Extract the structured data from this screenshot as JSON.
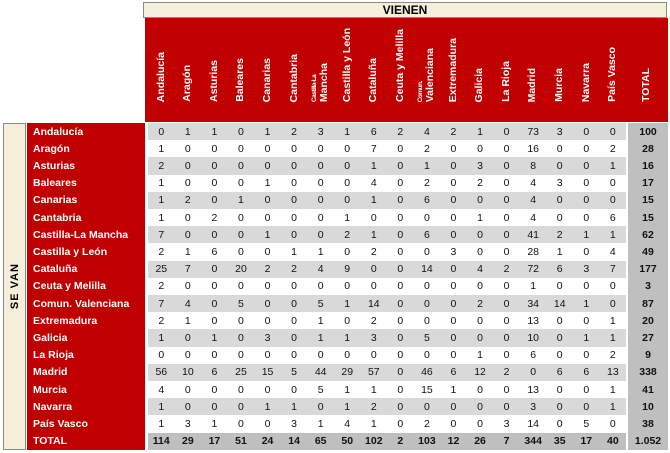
{
  "colors": {
    "header_red": "#C00000",
    "band_cream": "#F5EFDC",
    "band_border": "#8B8B7B",
    "stripe_gray": "#D9D9D9",
    "stripe_white": "#FFFFFF",
    "total_gray": "#BFBFBF",
    "header_text": "#FFFFFF",
    "data_text": "#111111"
  },
  "chart_data": {
    "type": "table",
    "title_top": "VIENEN",
    "title_left": "SE VAN",
    "total_column_label": "TOTAL",
    "columns": [
      {
        "label": "Andalucía"
      },
      {
        "label": "Aragón"
      },
      {
        "label": "Asturias"
      },
      {
        "label": "Baleares"
      },
      {
        "label": "Canarias"
      },
      {
        "label": "Cantabria"
      },
      {
        "label": "Castilla-La Mancha",
        "wrap": [
          "Castilla-La",
          "Mancha"
        ]
      },
      {
        "label": "Castilla y León"
      },
      {
        "label": "Cataluña"
      },
      {
        "label": "Ceuta y Melilla"
      },
      {
        "label": "Comun. Valenciana",
        "wrap": [
          "Comun.",
          "Valenciana"
        ]
      },
      {
        "label": "Extremadura"
      },
      {
        "label": "Galicia"
      },
      {
        "label": "La Rioja"
      },
      {
        "label": "Madrid"
      },
      {
        "label": "Murcia"
      },
      {
        "label": "Navarra"
      },
      {
        "label": "País Vasco"
      }
    ],
    "rows": [
      {
        "label": "Andalucía",
        "values": [
          0,
          1,
          1,
          0,
          1,
          2,
          3,
          1,
          6,
          2,
          4,
          2,
          1,
          0,
          73,
          3,
          0,
          0
        ],
        "total": "100"
      },
      {
        "label": "Aragón",
        "values": [
          1,
          0,
          0,
          0,
          0,
          0,
          0,
          0,
          7,
          0,
          2,
          0,
          0,
          0,
          16,
          0,
          0,
          2
        ],
        "total": "28"
      },
      {
        "label": "Asturias",
        "values": [
          2,
          0,
          0,
          0,
          0,
          0,
          0,
          0,
          1,
          0,
          1,
          0,
          3,
          0,
          8,
          0,
          0,
          1
        ],
        "total": "16"
      },
      {
        "label": "Baleares",
        "values": [
          1,
          0,
          0,
          0,
          1,
          0,
          0,
          0,
          4,
          0,
          2,
          0,
          2,
          0,
          4,
          3,
          0,
          0
        ],
        "total": "17"
      },
      {
        "label": "Canarias",
        "values": [
          1,
          2,
          0,
          1,
          0,
          0,
          0,
          0,
          1,
          0,
          6,
          0,
          0,
          0,
          4,
          0,
          0,
          0
        ],
        "total": "15"
      },
      {
        "label": "Cantabria",
        "values": [
          1,
          0,
          2,
          0,
          0,
          0,
          0,
          1,
          0,
          0,
          0,
          0,
          1,
          0,
          4,
          0,
          0,
          6
        ],
        "total": "15"
      },
      {
        "label": "Castilla-La Mancha",
        "values": [
          7,
          0,
          0,
          0,
          1,
          0,
          0,
          2,
          1,
          0,
          6,
          0,
          0,
          0,
          41,
          2,
          1,
          1
        ],
        "total": "62"
      },
      {
        "label": "Castilla y León",
        "values": [
          2,
          1,
          6,
          0,
          0,
          1,
          1,
          0,
          2,
          0,
          0,
          3,
          0,
          0,
          28,
          1,
          0,
          4
        ],
        "total": "49"
      },
      {
        "label": "Cataluña",
        "values": [
          25,
          7,
          0,
          20,
          2,
          2,
          4,
          9,
          0,
          0,
          14,
          0,
          4,
          2,
          72,
          6,
          3,
          7
        ],
        "total": "177"
      },
      {
        "label": "Ceuta y Melilla",
        "values": [
          2,
          0,
          0,
          0,
          0,
          0,
          0,
          0,
          0,
          0,
          0,
          0,
          0,
          0,
          1,
          0,
          0,
          0
        ],
        "total": "3"
      },
      {
        "label": "Comun. Valenciana",
        "values": [
          7,
          4,
          0,
          5,
          0,
          0,
          5,
          1,
          14,
          0,
          0,
          0,
          2,
          0,
          34,
          14,
          1,
          0
        ],
        "total": "87"
      },
      {
        "label": "Extremadura",
        "values": [
          2,
          1,
          0,
          0,
          0,
          0,
          1,
          0,
          2,
          0,
          0,
          0,
          0,
          0,
          13,
          0,
          0,
          1
        ],
        "total": "20"
      },
      {
        "label": "Galicia",
        "values": [
          1,
          0,
          1,
          0,
          3,
          0,
          1,
          1,
          3,
          0,
          5,
          0,
          0,
          0,
          10,
          0,
          1,
          1
        ],
        "total": "27"
      },
      {
        "label": "La Rioja",
        "values": [
          0,
          0,
          0,
          0,
          0,
          0,
          0,
          0,
          0,
          0,
          0,
          0,
          1,
          0,
          6,
          0,
          0,
          2
        ],
        "total": "9"
      },
      {
        "label": "Madrid",
        "values": [
          56,
          10,
          6,
          25,
          15,
          5,
          44,
          29,
          57,
          0,
          46,
          6,
          12,
          2,
          0,
          6,
          6,
          13
        ],
        "total": "338"
      },
      {
        "label": "Murcia",
        "values": [
          4,
          0,
          0,
          0,
          0,
          0,
          5,
          1,
          1,
          0,
          15,
          1,
          0,
          0,
          13,
          0,
          0,
          1
        ],
        "total": "41"
      },
      {
        "label": "Navarra",
        "values": [
          1,
          0,
          0,
          0,
          1,
          1,
          0,
          1,
          2,
          0,
          0,
          0,
          0,
          0,
          3,
          0,
          0,
          1
        ],
        "total": "10"
      },
      {
        "label": "País Vasco",
        "values": [
          1,
          3,
          1,
          0,
          0,
          3,
          1,
          4,
          1,
          0,
          2,
          0,
          0,
          3,
          14,
          0,
          5,
          0
        ],
        "total": "38"
      }
    ],
    "total_row": {
      "label": "TOTAL",
      "values": [
        114,
        29,
        17,
        51,
        24,
        14,
        65,
        50,
        102,
        2,
        103,
        12,
        26,
        7,
        344,
        35,
        17,
        40
      ],
      "total": "1.052"
    }
  }
}
